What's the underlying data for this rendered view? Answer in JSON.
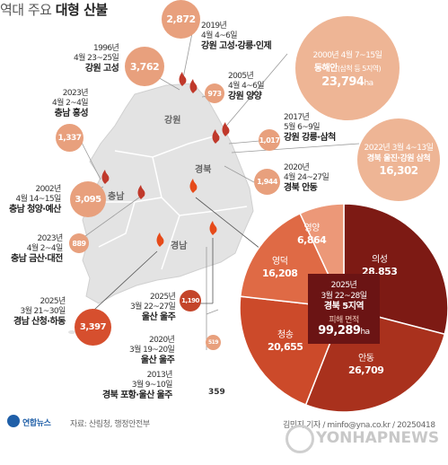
{
  "header": {
    "title_prefix": "역대 주요",
    "title_main": "대형 산불"
  },
  "provinces": {
    "gangwon": "강원",
    "gyeongbuk": "경북",
    "chungnam": "충남",
    "gyeongnam": "경남"
  },
  "events": [
    {
      "date1": "1996년",
      "date2": "4월 23~25일",
      "location": "강원 고성",
      "area": "3,762"
    },
    {
      "date1": "2019년",
      "date2": "4월 4~6일",
      "location": "강원 고성·강릉·인제",
      "area": "2,872"
    },
    {
      "date1": "2005년",
      "date2": "4월 4~6일",
      "location": "강원 양양",
      "area": "973"
    },
    {
      "date1": "2023년",
      "date2": "4월 2~4일",
      "location": "충남 홍성",
      "area": "1,337"
    },
    {
      "date1": "2017년",
      "date2": "5월 6~9일",
      "location": "강원 강릉·삼척",
      "area": "1,017"
    },
    {
      "date1": "2020년",
      "date2": "4월 24~27일",
      "location": "경북 안동",
      "area": "1,944"
    },
    {
      "date1": "2002년",
      "date2": "4월 14~15일",
      "location": "충남 청양·예산",
      "area": "3,095"
    },
    {
      "date1": "2023년",
      "date2": "4월 2~4일",
      "location": "충남 금산·대전",
      "area": "889"
    },
    {
      "date1": "2025년",
      "date2": "3월 21~30일",
      "location": "경남 산청·하동",
      "area": "3,397"
    },
    {
      "date1": "2025년",
      "date2": "3월 22~27일",
      "location": "울산 울주",
      "area": "1,190"
    },
    {
      "date1": "2020년",
      "date2": "3월 19~20일",
      "location": "울산 울주",
      "area": "519"
    },
    {
      "date1": "2013년",
      "date2": "3월 9~10일",
      "location": "경북 포항·울산 울주",
      "area": "359"
    }
  ],
  "big_events": [
    {
      "dates": "2000년 4월 7~15일",
      "location": "동해안",
      "note": "(삼척 등 5지역)",
      "area": "23,794",
      "unit": "ha"
    },
    {
      "dates": "2022년 3월 4~13일",
      "location": "경북 울진·강원 삼척",
      "area": "16,302"
    }
  ],
  "pie": {
    "center_year": "2025년",
    "center_dates": "3월 22~28일",
    "center_location": "경북 5지역",
    "center_label": "피해 면적",
    "total": "99,289",
    "unit": "ha",
    "segments": [
      {
        "name": "의성",
        "value": 28853,
        "value_text": "28,853",
        "color": "#7d1a14"
      },
      {
        "name": "안동",
        "value": 26709,
        "value_text": "26,709",
        "color": "#a9311d"
      },
      {
        "name": "청송",
        "value": 20655,
        "value_text": "20,655",
        "color": "#cc4a2a"
      },
      {
        "name": "영덕",
        "value": 16208,
        "value_text": "16,208",
        "color": "#df6a45"
      },
      {
        "name": "영양",
        "value": 6864,
        "value_text": "6,864",
        "color": "#ec9878"
      }
    ]
  },
  "footer": {
    "logo": "연합뉴스",
    "source": "자료: 산림청, 행정안전부",
    "credit": "김민지 기자 / minfo@yna.co.kr / 20250418",
    "watermark": "YONHAPNEWS"
  }
}
